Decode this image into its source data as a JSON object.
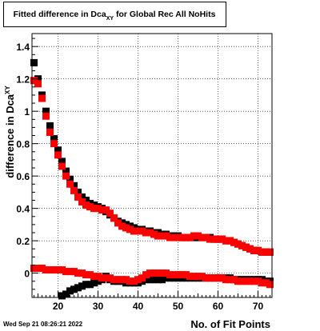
{
  "title": {
    "main": "Fitted difference in Dca",
    "subscript": "XY",
    "suffix": " for Global Rec All NoHits"
  },
  "timestamp": "Wed Sep 21 08:26:21 2022",
  "colors": {
    "series_black": "#000000",
    "series_red": "#ff0000",
    "grid": "#000000",
    "frame": "#000000"
  },
  "chart_data": {
    "type": "scatter",
    "title": "Fitted difference in Dca_XY for Global Rec All NoHits",
    "xlabel": "No. of Fit Points",
    "ylabel": "difference in Dca_XY",
    "ylabel_parts": {
      "main": "difference in Dca",
      "subscript": "XY"
    },
    "xlim": [
      13.5,
      73.5
    ],
    "ylim": [
      -0.15,
      1.48
    ],
    "grid": true,
    "x_ticks": [
      20,
      30,
      40,
      50,
      60,
      70
    ],
    "y_ticks": [
      0,
      0.2,
      0.4,
      0.6,
      0.8,
      1,
      1.2,
      1.4
    ],
    "x_tick_labels": [
      "20",
      "30",
      "40",
      "50",
      "60",
      "70"
    ],
    "y_tick_labels": [
      "0",
      "0.2",
      "0.4",
      "0.6",
      "0.8",
      "1",
      "1.2",
      "1.4"
    ],
    "marker": "square",
    "series": [
      {
        "color": "#000000",
        "x": [
          14,
          15,
          16,
          17,
          18,
          19,
          20,
          21,
          22,
          23,
          24,
          25,
          26,
          27,
          28,
          29,
          30,
          31,
          32,
          33,
          34,
          35,
          36,
          37,
          38,
          39,
          40,
          41,
          42,
          43,
          44,
          45,
          46,
          47,
          48,
          49,
          50,
          51,
          52,
          53,
          54,
          55,
          56,
          57,
          58,
          59,
          60,
          61,
          62,
          63,
          64,
          65,
          66,
          67,
          68,
          69,
          70,
          71,
          72,
          73
        ],
        "y": [
          1.3,
          1.2,
          1.1,
          1.0,
          0.91,
          0.83,
          0.76,
          0.69,
          0.63,
          0.58,
          0.54,
          0.5,
          0.47,
          0.45,
          0.43,
          0.42,
          0.41,
          0.4,
          0.38,
          0.36,
          0.34,
          0.32,
          0.31,
          0.3,
          0.29,
          0.28,
          0.27,
          0.27,
          0.26,
          0.26,
          0.25,
          0.25,
          0.24,
          0.24,
          0.23,
          0.23,
          0.23,
          0.22,
          0.22,
          0.22,
          0.22,
          0.22,
          0.22,
          0.22,
          0.22,
          0.21,
          0.21,
          0.21,
          0.2,
          0.2,
          0.19,
          0.18,
          0.17,
          0.16,
          0.15,
          0.14,
          0.14,
          0.13,
          0.13,
          0.13
        ]
      },
      {
        "color": "#000000",
        "x": [
          21,
          22,
          23,
          24,
          25,
          26,
          27,
          28,
          29,
          30,
          31,
          32,
          33,
          34,
          35,
          36,
          37,
          38,
          39,
          40,
          41,
          42,
          43,
          44,
          45,
          46,
          47,
          48,
          49,
          50,
          51,
          52,
          53,
          54,
          55,
          56,
          57,
          58,
          59,
          60,
          61,
          62,
          63,
          64,
          65,
          66,
          67,
          68,
          69,
          70,
          71,
          72,
          73
        ],
        "y": [
          -0.14,
          -0.13,
          -0.11,
          -0.1,
          -0.09,
          -0.08,
          -0.07,
          -0.07,
          -0.06,
          -0.05,
          -0.04,
          -0.02,
          -0.04,
          -0.05,
          -0.05,
          -0.05,
          -0.06,
          -0.06,
          -0.06,
          -0.06,
          -0.05,
          -0.04,
          -0.04,
          -0.04,
          -0.04,
          -0.04,
          -0.03,
          -0.03,
          -0.03,
          -0.03,
          -0.03,
          -0.03,
          -0.03,
          -0.03,
          -0.03,
          -0.03,
          -0.03,
          -0.03,
          -0.03,
          -0.03,
          -0.03,
          -0.03,
          -0.03,
          -0.04,
          -0.04,
          -0.04,
          -0.04,
          -0.04,
          -0.04,
          -0.04,
          -0.04,
          -0.05,
          -0.05
        ]
      },
      {
        "color": "#ff0000",
        "x": [
          14,
          15,
          16,
          17,
          18,
          19,
          20,
          21,
          22,
          23,
          24,
          25,
          26,
          27,
          28,
          29,
          30,
          31,
          32,
          33,
          34,
          35,
          36,
          37,
          38,
          39,
          40,
          41,
          42,
          43,
          44,
          45,
          46,
          47,
          48,
          49,
          50,
          51,
          52,
          53,
          54,
          55,
          56,
          57,
          58,
          59,
          60,
          61,
          62,
          63,
          64,
          65,
          66,
          67,
          68,
          69,
          70,
          71,
          72,
          73
        ],
        "y": [
          1.19,
          1.17,
          1.08,
          0.97,
          0.87,
          0.8,
          0.73,
          0.66,
          0.6,
          0.55,
          0.51,
          0.47,
          0.44,
          0.42,
          0.41,
          0.4,
          0.4,
          0.39,
          0.39,
          0.37,
          0.34,
          0.31,
          0.29,
          0.28,
          0.27,
          0.26,
          0.26,
          0.26,
          0.25,
          0.25,
          0.24,
          0.23,
          0.23,
          0.23,
          0.22,
          0.22,
          0.22,
          0.22,
          0.22,
          0.22,
          0.23,
          0.23,
          0.22,
          0.22,
          0.21,
          0.21,
          0.21,
          0.21,
          0.2,
          0.2,
          0.19,
          0.18,
          0.17,
          0.16,
          0.15,
          0.14,
          0.14,
          0.13,
          0.13,
          0.13
        ]
      },
      {
        "color": "#ff0000",
        "x": [
          14,
          15,
          16,
          17,
          18,
          19,
          20,
          21,
          22,
          23,
          24,
          25,
          26,
          27,
          28,
          29,
          30,
          31,
          32,
          33,
          34,
          35,
          36,
          37,
          38,
          39,
          40,
          41,
          42,
          43,
          44,
          45,
          46,
          47,
          48,
          49,
          50,
          51,
          52,
          53,
          54,
          55,
          56,
          57,
          58,
          59,
          60,
          61,
          62,
          63,
          64,
          65,
          66,
          67,
          68,
          69,
          70,
          71,
          72,
          73
        ],
        "y": [
          0.03,
          0.03,
          0.03,
          0.02,
          0.02,
          0.02,
          0.02,
          0.02,
          0.01,
          0.01,
          0.01,
          0.0,
          0.0,
          -0.01,
          -0.01,
          -0.02,
          -0.02,
          -0.03,
          -0.03,
          -0.03,
          -0.04,
          -0.04,
          -0.04,
          -0.04,
          -0.05,
          -0.05,
          -0.04,
          -0.03,
          -0.01,
          0.0,
          0.0,
          0.0,
          0.0,
          0.0,
          -0.01,
          -0.01,
          -0.01,
          -0.01,
          -0.01,
          -0.02,
          -0.02,
          -0.02,
          -0.02,
          -0.03,
          -0.03,
          -0.03,
          -0.03,
          -0.03,
          -0.04,
          -0.04,
          -0.04,
          -0.05,
          -0.05,
          -0.05,
          -0.05,
          -0.05,
          -0.05,
          -0.06,
          -0.06,
          -0.07
        ]
      }
    ]
  }
}
